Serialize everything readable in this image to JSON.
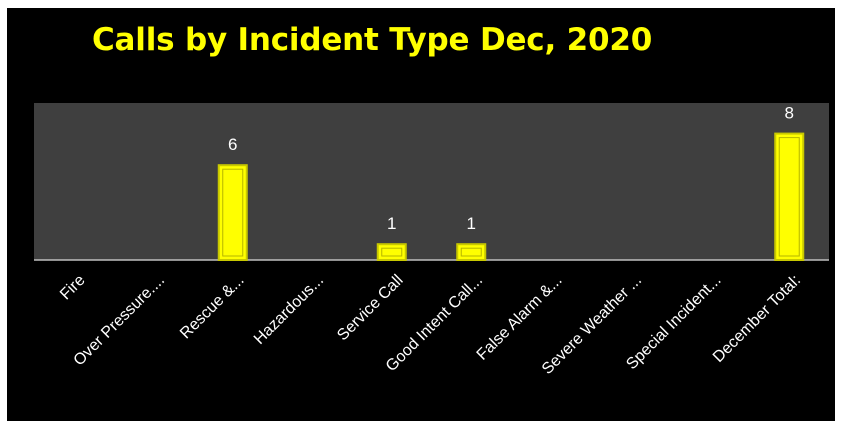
{
  "chart_data": {
    "type": "bar",
    "title": "Calls by Incident Type Dec, 2020",
    "categories": [
      "Fire",
      "Over Pressure....",
      "Rescue &...",
      "Hazardous...",
      "Service Call",
      "Good Intent Call...",
      "False Alarm &...",
      "Severe Weather ...",
      "Special Incident...",
      "December Total:"
    ],
    "values": [
      0,
      0,
      6,
      0,
      1,
      1,
      0,
      0,
      0,
      8
    ],
    "data_labels": [
      "",
      "",
      "6",
      "",
      "1",
      "1",
      "",
      "",
      "",
      "8"
    ],
    "ylim": [
      0,
      8.5
    ],
    "grid": false,
    "legend": "none",
    "colors": {
      "bar_fill": "#ffff00",
      "bar_edge": "#c8c800",
      "plot_background": "#3f3f3f",
      "background": "#000000",
      "title": "#ffff00",
      "text": "#ffffff"
    }
  }
}
